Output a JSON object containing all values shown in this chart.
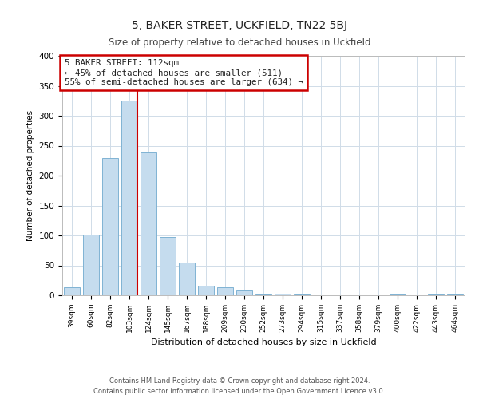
{
  "title": "5, BAKER STREET, UCKFIELD, TN22 5BJ",
  "subtitle": "Size of property relative to detached houses in Uckfield",
  "xlabel": "Distribution of detached houses by size in Uckfield",
  "ylabel": "Number of detached properties",
  "bar_labels": [
    "39sqm",
    "60sqm",
    "82sqm",
    "103sqm",
    "124sqm",
    "145sqm",
    "167sqm",
    "188sqm",
    "209sqm",
    "230sqm",
    "252sqm",
    "273sqm",
    "294sqm",
    "315sqm",
    "337sqm",
    "358sqm",
    "379sqm",
    "400sqm",
    "422sqm",
    "443sqm",
    "464sqm"
  ],
  "bar_values": [
    13,
    101,
    230,
    325,
    239,
    97,
    55,
    16,
    14,
    8,
    1,
    3,
    1,
    0,
    0,
    0,
    0,
    2,
    0,
    1,
    1
  ],
  "bar_color": "#c5dcee",
  "bar_edge_color": "#7fb3d3",
  "annotation_text": "5 BAKER STREET: 112sqm\n← 45% of detached houses are smaller (511)\n55% of semi-detached houses are larger (634) →",
  "annotation_box_color": "#ffffff",
  "annotation_box_edge": "#cc0000",
  "vline_color": "#cc0000",
  "ylim": [
    0,
    400
  ],
  "footer_line1": "Contains HM Land Registry data © Crown copyright and database right 2024.",
  "footer_line2": "Contains public sector information licensed under the Open Government Licence v3.0.",
  "background_color": "#ffffff",
  "grid_color": "#d0dce8"
}
